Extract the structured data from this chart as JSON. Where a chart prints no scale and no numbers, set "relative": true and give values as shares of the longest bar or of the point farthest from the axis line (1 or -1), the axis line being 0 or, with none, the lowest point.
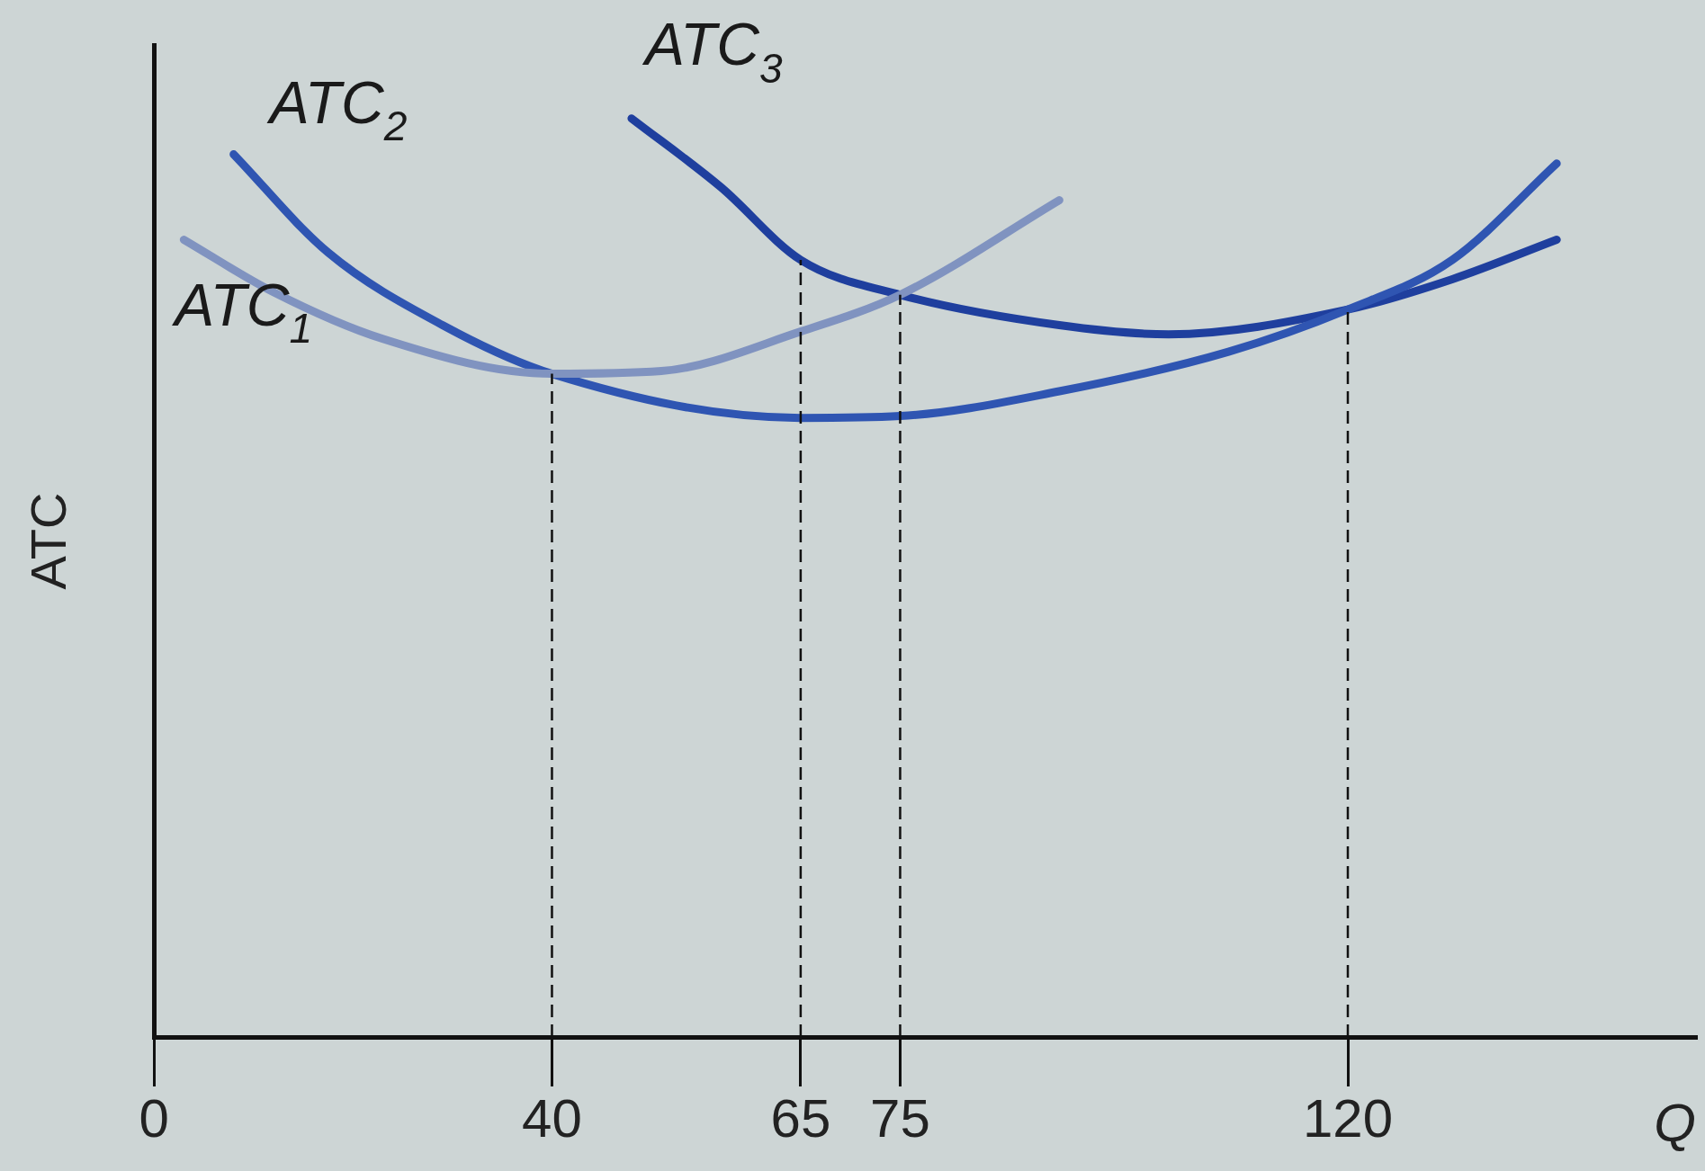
{
  "chart_data": {
    "type": "line",
    "relative": true,
    "xlabel": "Q",
    "ylabel": "ATC",
    "xlim": [
      0,
      155
    ],
    "xticks": [
      0,
      40,
      65,
      75,
      120
    ],
    "tick_labels": "x",
    "grid": false,
    "legend": false,
    "marker": "none",
    "line_style": "solid",
    "series": [
      {
        "name": "ATC$_{1}$",
        "color": "#8093c0",
        "x": [
          3,
          12,
          23,
          40,
          51,
          65,
          75,
          91
        ],
        "values": [
          0.868,
          0.811,
          0.76,
          0.722,
          0.725,
          0.768,
          0.808,
          0.911
        ]
      },
      {
        "name": "ATC$_{2}$",
        "color": "#2f55b2",
        "x": [
          8,
          17.5,
          29,
          40,
          65,
          75,
          91,
          108,
          120,
          130.5,
          141
        ],
        "values": [
          0.961,
          0.854,
          0.775,
          0.722,
          0.674,
          0.676,
          0.703,
          0.746,
          0.792,
          0.846,
          0.951
        ]
      },
      {
        "name": "ATC$_{3}$",
        "color": "#1f3f9e",
        "x": [
          48,
          57,
          65,
          75,
          91,
          102,
          120,
          130.5,
          141
        ],
        "values": [
          1.0,
          0.925,
          0.846,
          0.808,
          0.775,
          0.765,
          0.792,
          0.825,
          0.868
        ]
      }
    ],
    "ref_lines": [
      {
        "axis": "x",
        "value": 40
      },
      {
        "axis": "x",
        "value": 65
      },
      {
        "axis": "x",
        "value": 75
      },
      {
        "axis": "x",
        "value": 120
      }
    ]
  }
}
